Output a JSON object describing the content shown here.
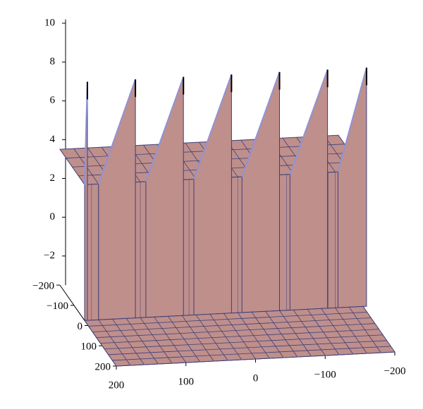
{
  "chart_data": {
    "type": "surface3d",
    "xlim": [
      200,
      -200
    ],
    "xticks": [
      {
        "value": 200,
        "label": "200"
      },
      {
        "value": 100,
        "label": "100"
      },
      0,
      {
        "value": -100,
        "label": "−100"
      },
      {
        "value": -200,
        "label": "−200"
      }
    ],
    "ylim": [
      -200,
      200
    ],
    "yticks": [
      {
        "value": -200,
        "label": "−200"
      },
      {
        "value": -100,
        "label": "−100"
      },
      0,
      {
        "value": 100,
        "label": "100"
      },
      {
        "value": 200,
        "label": "200"
      }
    ],
    "zlim": [
      -3.5,
      10
    ],
    "zticks": [
      {
        "value": -2,
        "label": "−2"
      },
      0,
      2,
      4,
      6,
      8,
      10
    ],
    "color": "#bf8f8c",
    "mesh_color": "#3c3f78",
    "surface": {
      "plateau": 3.5,
      "floor": -3.5,
      "step_y": -25,
      "peaks": {
        "x": [
          196,
          127,
          58,
          -11,
          -80,
          -149,
          -205
        ],
        "base_x": [
          200,
          180,
          112,
          43,
          -26,
          -95,
          -164
        ],
        "z": [
          8.8,
          8.8,
          8.8,
          8.8,
          8.8,
          8.8,
          8.8
        ]
      }
    }
  }
}
